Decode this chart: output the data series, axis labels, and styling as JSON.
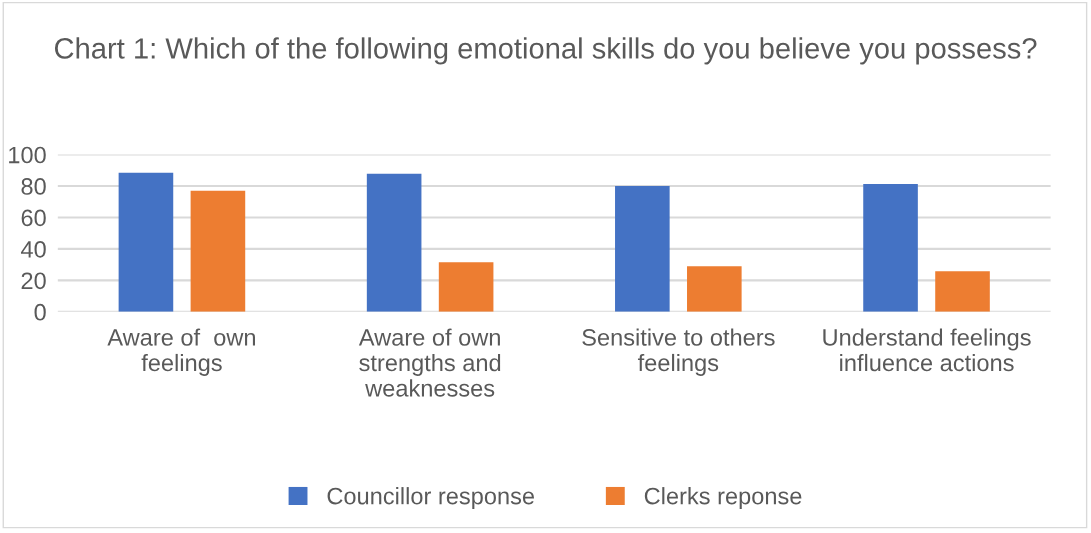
{
  "chart_data": {
    "type": "bar",
    "title": "Chart 1: Which of the following emotional skills do you believe you possess?",
    "categories": [
      "Aware of  own feelings",
      "Aware of own strengths and weaknesses",
      "Sensitive to others feelings",
      "Understand feelings influence actions"
    ],
    "series": [
      {
        "name": "Councillor response",
        "color": "#4472c4",
        "values": [
          88.5,
          87.8,
          80,
          81.3
        ]
      },
      {
        "name": "Clerks reponse",
        "color": "#ed7d31",
        "values": [
          77,
          31.5,
          29,
          25.8
        ]
      }
    ],
    "ylim": [
      0,
      100
    ],
    "yticks": [
      0,
      20,
      40,
      60,
      80,
      100
    ],
    "grid": "y",
    "legend": "bottom"
  }
}
